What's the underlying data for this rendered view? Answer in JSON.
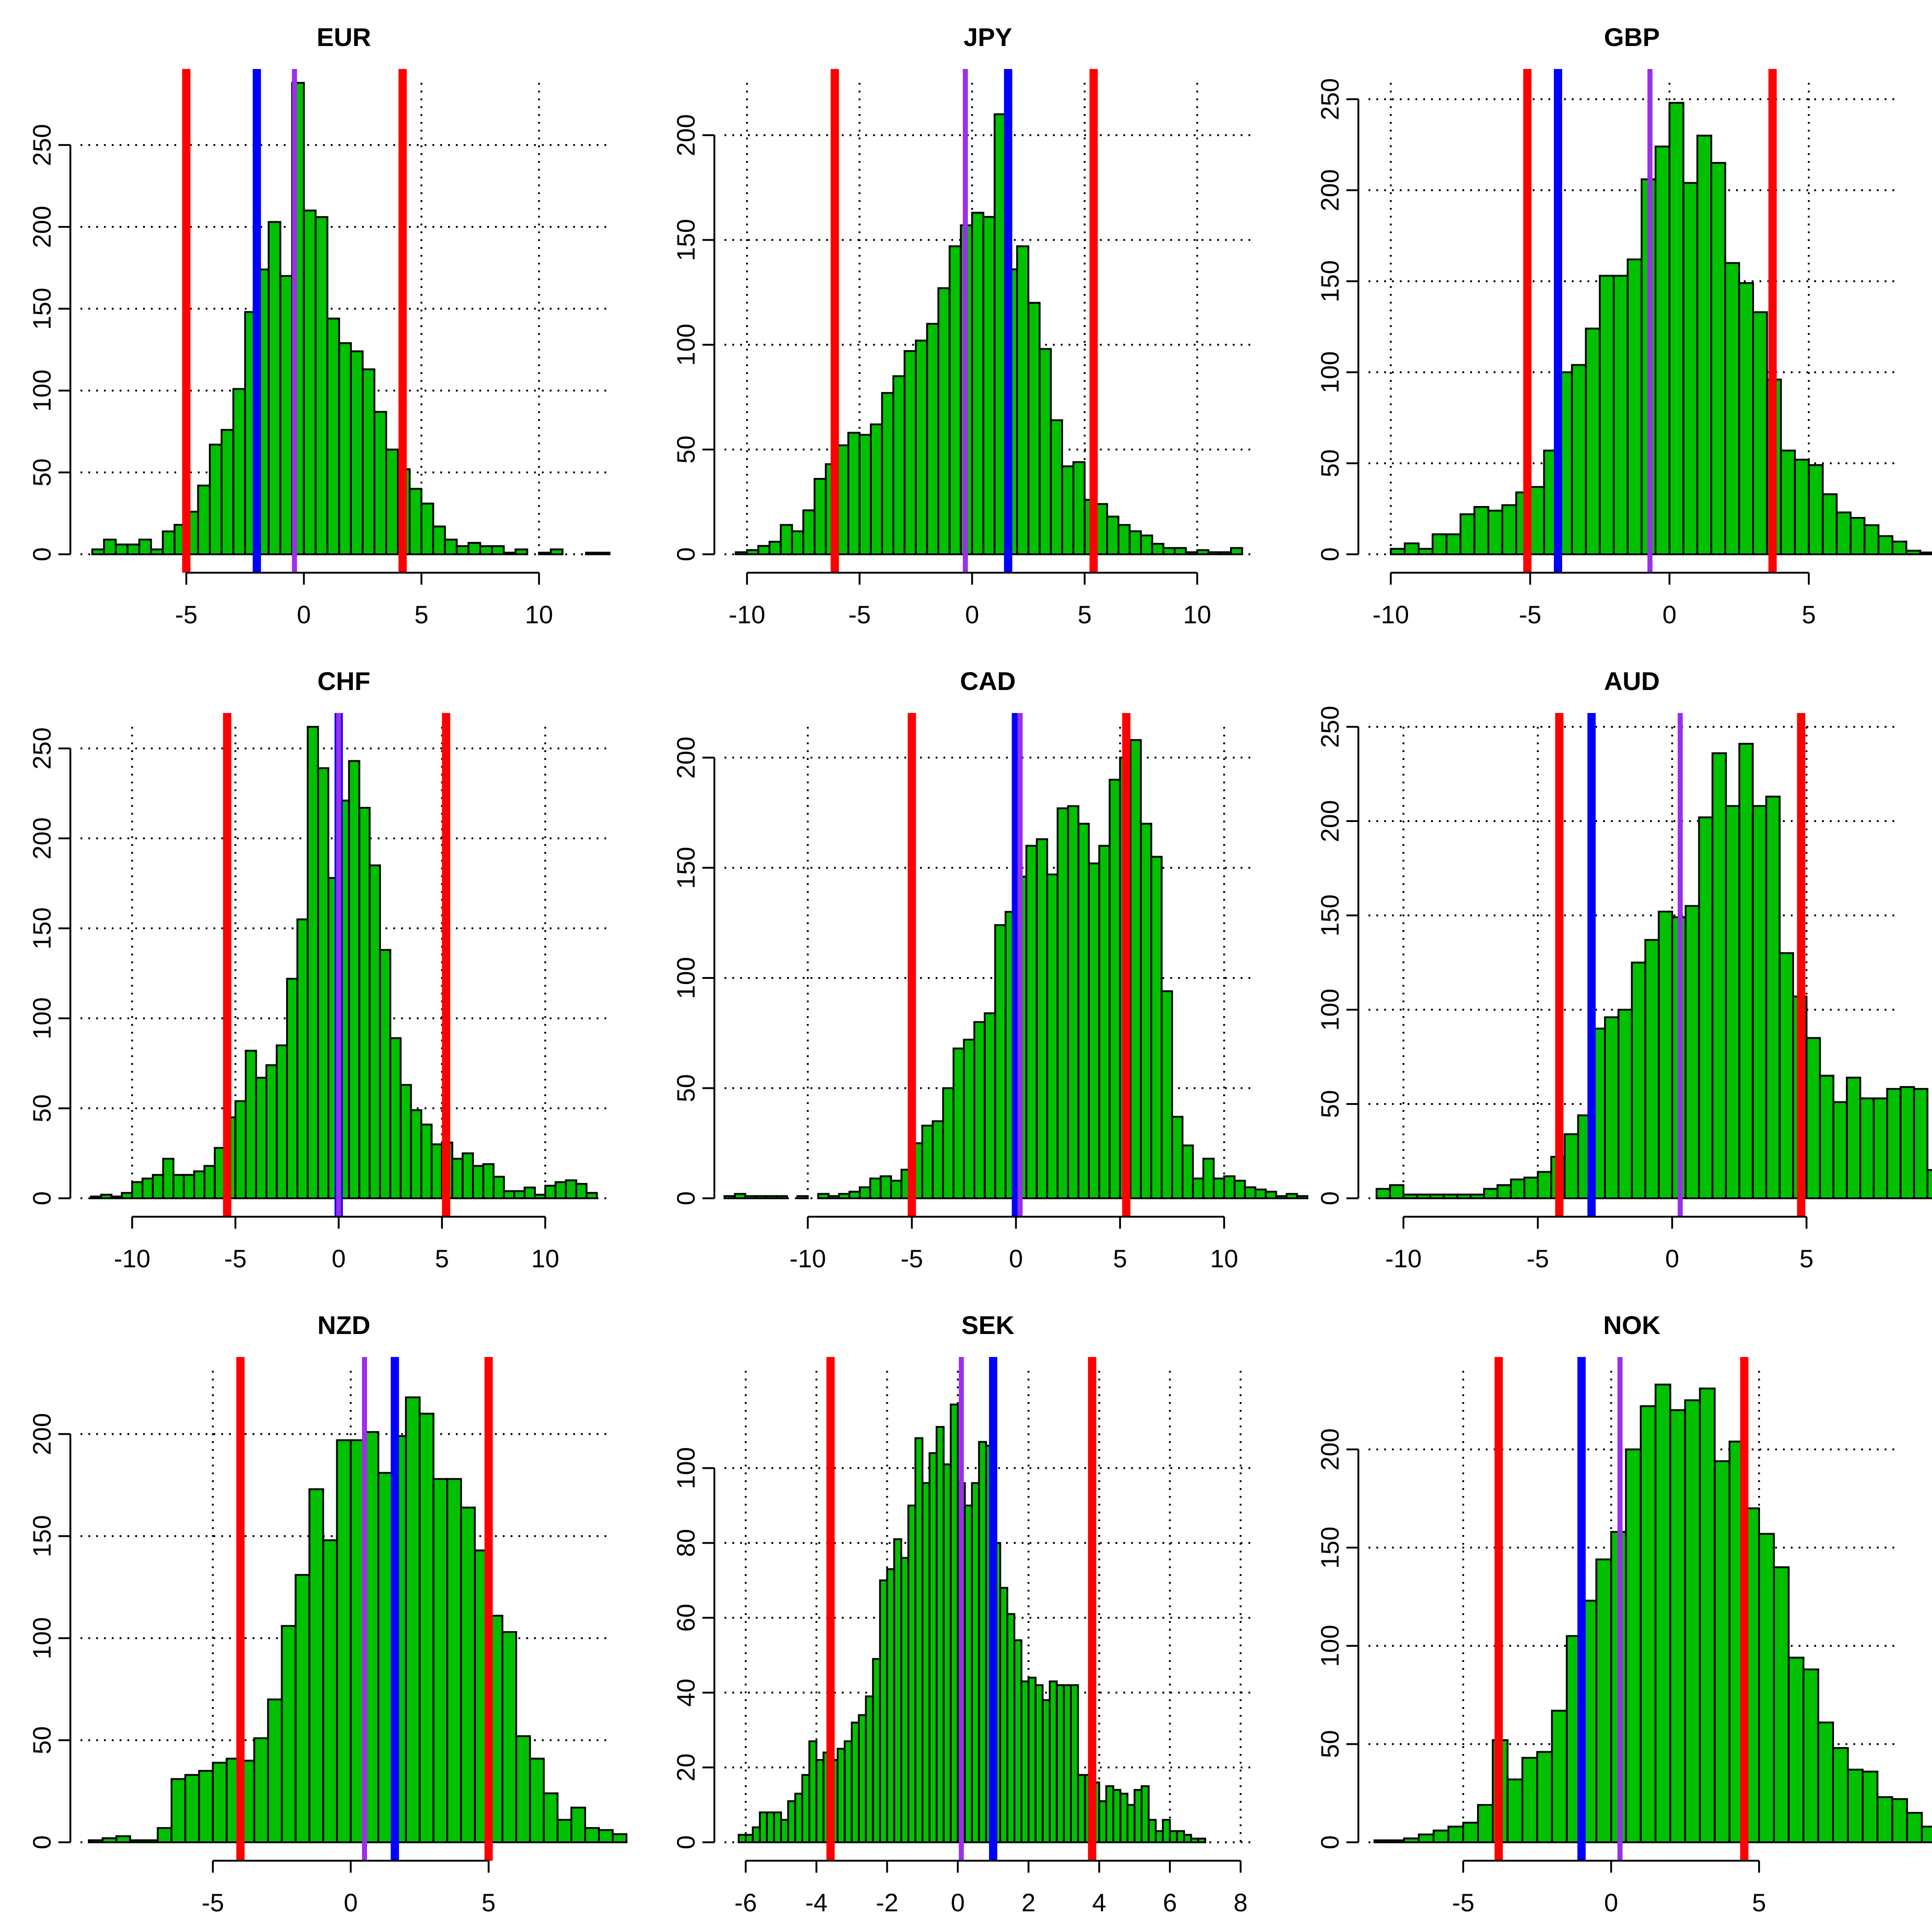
{
  "chart_data": [
    {
      "type": "bar",
      "title": "EUR",
      "xlim": [
        -9.5,
        12.9
      ],
      "ylim": [
        0,
        288
      ],
      "xticks": [
        -5,
        0,
        5,
        10
      ],
      "yticks": [
        0,
        50,
        100,
        150,
        200,
        250
      ],
      "xgrid": [
        -5,
        0,
        5,
        10
      ],
      "bin_start": -9.0,
      "bin_width": 0.5,
      "values": [
        3,
        9,
        6,
        6,
        9,
        3,
        14,
        18,
        26,
        42,
        67,
        76,
        101,
        148,
        174,
        203,
        170,
        288,
        210,
        206,
        144,
        129,
        124,
        113,
        87,
        64,
        52,
        40,
        31,
        17,
        9,
        5,
        7,
        5,
        5,
        1,
        3,
        0,
        1,
        3,
        0,
        0,
        1,
        1
      ],
      "vlines": {
        "red": [
          -5.0,
          4.2
        ],
        "blue": [
          -2.0
        ],
        "purple": [
          -0.4
        ]
      }
    },
    {
      "type": "bar",
      "title": "JPY",
      "xlim": [
        -11,
        12.4
      ],
      "ylim": [
        0,
        225
      ],
      "xticks": [
        -10,
        -5,
        0,
        5,
        10
      ],
      "yticks": [
        0,
        50,
        100,
        150,
        200
      ],
      "xgrid": [
        -10,
        -5,
        0,
        5,
        10
      ],
      "bin_start": -10.5,
      "bin_width": 0.5,
      "values": [
        1,
        2,
        4,
        6,
        14,
        11,
        21,
        36,
        43,
        52,
        58,
        57,
        62,
        77,
        85,
        97,
        102,
        110,
        127,
        147,
        157,
        163,
        161,
        210,
        136,
        147,
        120,
        98,
        64,
        42,
        44,
        26,
        24,
        18,
        14,
        11,
        9,
        5,
        3,
        3,
        1,
        2,
        1,
        1,
        3
      ],
      "vlines": {
        "red": [
          -6.1,
          5.4
        ],
        "blue": [
          1.6
        ],
        "purple": [
          -0.3
        ]
      }
    },
    {
      "type": "bar",
      "title": "GBP",
      "xlim": [
        -10.8,
        8.1
      ],
      "ylim": [
        0,
        259
      ],
      "xticks": [
        -10,
        -5,
        0,
        5
      ],
      "yticks": [
        0,
        50,
        100,
        150,
        200,
        250
      ],
      "xgrid": [
        -10,
        -5,
        0,
        5
      ],
      "bin_start": -10.0,
      "bin_width": 0.5,
      "values": [
        3,
        6,
        3,
        11,
        11,
        22,
        26,
        24,
        27,
        34,
        37,
        57,
        100,
        104,
        124,
        153,
        153,
        162,
        206,
        224,
        248,
        204,
        230,
        215,
        160,
        149,
        133,
        96,
        57,
        52,
        49,
        33,
        23,
        20,
        16,
        10,
        7,
        2,
        1,
        1,
        1
      ],
      "vlines": {
        "red": [
          -5.1,
          3.7
        ],
        "blue": [
          -4.0
        ],
        "purple": [
          -0.7
        ]
      }
    },
    {
      "type": "bar",
      "title": "CHF",
      "xlim": [
        -12.5,
        13
      ],
      "ylim": [
        0,
        262
      ],
      "xticks": [
        -10,
        -5,
        0,
        5,
        10
      ],
      "yticks": [
        0,
        50,
        100,
        150,
        200,
        250
      ],
      "xgrid": [
        -10,
        -5,
        0,
        5,
        10
      ],
      "bin_start": -12.0,
      "bin_width": 0.5,
      "values": [
        1,
        2,
        1,
        3,
        9,
        11,
        13,
        22,
        13,
        13,
        15,
        18,
        28,
        45,
        54,
        82,
        67,
        74,
        85,
        122,
        155,
        262,
        239,
        178,
        221,
        243,
        217,
        185,
        138,
        89,
        63,
        49,
        41,
        30,
        31,
        22,
        25,
        18,
        19,
        12,
        4,
        4,
        6,
        2,
        7,
        9,
        10,
        8,
        3
      ],
      "vlines": {
        "red": [
          -5.4,
          5.2
        ],
        "blue": [
          0.0
        ],
        "purple": [
          0.0
        ]
      }
    },
    {
      "type": "bar",
      "title": "CAD",
      "xlim": [
        -14,
        11.3
      ],
      "ylim": [
        0,
        214
      ],
      "xticks": [
        -10,
        -5,
        0,
        5,
        10
      ],
      "yticks": [
        0,
        50,
        100,
        150,
        200
      ],
      "xgrid": [
        -10,
        -5,
        0,
        5,
        10
      ],
      "bin_start": -14.0,
      "bin_width": 0.5,
      "values": [
        1,
        2,
        1,
        1,
        1,
        1,
        0,
        1,
        0,
        2,
        1,
        2,
        3,
        5,
        9,
        10,
        8,
        13,
        25,
        33,
        35,
        50,
        68,
        72,
        80,
        84,
        124,
        130,
        146,
        160,
        163,
        147,
        177,
        178,
        170,
        152,
        160,
        190,
        200,
        208,
        170,
        155,
        94,
        37,
        24,
        9,
        18,
        9,
        10,
        8,
        5,
        4,
        3,
        1,
        2,
        1
      ],
      "vlines": {
        "red": [
          -5.0,
          5.3
        ],
        "blue": [
          0.0
        ],
        "purple": [
          0.2
        ]
      }
    },
    {
      "type": "bar",
      "title": "AUD",
      "xlim": [
        -11.3,
        8.3
      ],
      "ylim": [
        0,
        250
      ],
      "xticks": [
        -10,
        -5,
        0,
        5
      ],
      "yticks": [
        0,
        50,
        100,
        150,
        200,
        250
      ],
      "xgrid": [
        -10,
        -5,
        0,
        5
      ],
      "bin_start": -11.0,
      "bin_width": 0.5,
      "values": [
        5,
        7,
        2,
        2,
        2,
        2,
        2,
        2,
        5,
        7,
        10,
        11,
        14,
        22,
        34,
        44,
        90,
        96,
        100,
        125,
        137,
        152,
        149,
        155,
        202,
        236,
        208,
        241,
        208,
        213,
        130,
        107,
        85,
        65,
        51,
        64,
        53,
        53,
        58,
        59,
        58,
        15,
        8,
        5,
        3,
        2
      ],
      "vlines": {
        "red": [
          -4.2,
          4.8
        ],
        "blue": [
          -3.0
        ],
        "purple": [
          0.3
        ]
      }
    },
    {
      "type": "bar",
      "title": "NZD",
      "xlim": [
        -9.8,
        9.3
      ],
      "ylim": [
        0,
        231
      ],
      "xticks": [
        -5,
        0,
        5
      ],
      "yticks": [
        0,
        50,
        100,
        150,
        200
      ],
      "xgrid": [
        -5,
        0,
        5
      ],
      "bin_start": -9.5,
      "bin_width": 0.5,
      "values": [
        1,
        2,
        3,
        1,
        1,
        7,
        31,
        33,
        35,
        39,
        41,
        40,
        51,
        70,
        106,
        131,
        173,
        148,
        197,
        197,
        201,
        181,
        199,
        218,
        210,
        178,
        178,
        164,
        143,
        111,
        103,
        52,
        41,
        24,
        11,
        17,
        7,
        6,
        4
      ],
      "vlines": {
        "red": [
          -4.0,
          5.0
        ],
        "blue": [
          1.6
        ],
        "purple": [
          0.5
        ]
      }
    },
    {
      "type": "bar",
      "title": "SEK",
      "xlim": [
        -6.6,
        8.3
      ],
      "ylim": [
        0,
        126
      ],
      "xticks": [
        -6,
        -4,
        -2,
        0,
        2,
        4,
        6,
        8
      ],
      "yticks": [
        0,
        20,
        40,
        60,
        80,
        100
      ],
      "xgrid": [
        -6,
        -4,
        -2,
        0,
        2,
        4,
        6,
        8
      ],
      "bin_start": -6.2,
      "bin_width": 0.2,
      "values": [
        2,
        2,
        4,
        8,
        8,
        8,
        6,
        11,
        13,
        18,
        27,
        22,
        24,
        22,
        25,
        27,
        32,
        34,
        39,
        49,
        70,
        73,
        81,
        76,
        90,
        108,
        96,
        104,
        111,
        101,
        117,
        96,
        90,
        96,
        107,
        106,
        80,
        68,
        61,
        54,
        43,
        44,
        42,
        38,
        43,
        42,
        42,
        42,
        18,
        18,
        16,
        11,
        15,
        14,
        13,
        10,
        14,
        15,
        6,
        3,
        6,
        3,
        3,
        2,
        1,
        1
      ],
      "vlines": {
        "red": [
          -3.6,
          3.8
        ],
        "blue": [
          1.0
        ],
        "purple": [
          0.1
        ]
      }
    },
    {
      "type": "bar",
      "title": "NOK",
      "xlim": [
        -8.2,
        9.6
      ],
      "ylim": [
        0,
        240
      ],
      "xticks": [
        -5,
        0,
        5
      ],
      "yticks": [
        0,
        50,
        100,
        150,
        200
      ],
      "xgrid": [
        -5,
        0,
        5
      ],
      "bin_start": -8.0,
      "bin_width": 0.5,
      "values": [
        1,
        1,
        2,
        4,
        6,
        8,
        10,
        19,
        52,
        32,
        43,
        46,
        67,
        105,
        123,
        144,
        158,
        200,
        222,
        233,
        220,
        225,
        231,
        194,
        204,
        170,
        157,
        140,
        94,
        88,
        61,
        48,
        37,
        36,
        23,
        22,
        15,
        8,
        6,
        7,
        4
      ],
      "vlines": {
        "red": [
          -3.8,
          4.5
        ],
        "blue": [
          -1.0
        ],
        "purple": [
          0.3
        ]
      }
    }
  ]
}
